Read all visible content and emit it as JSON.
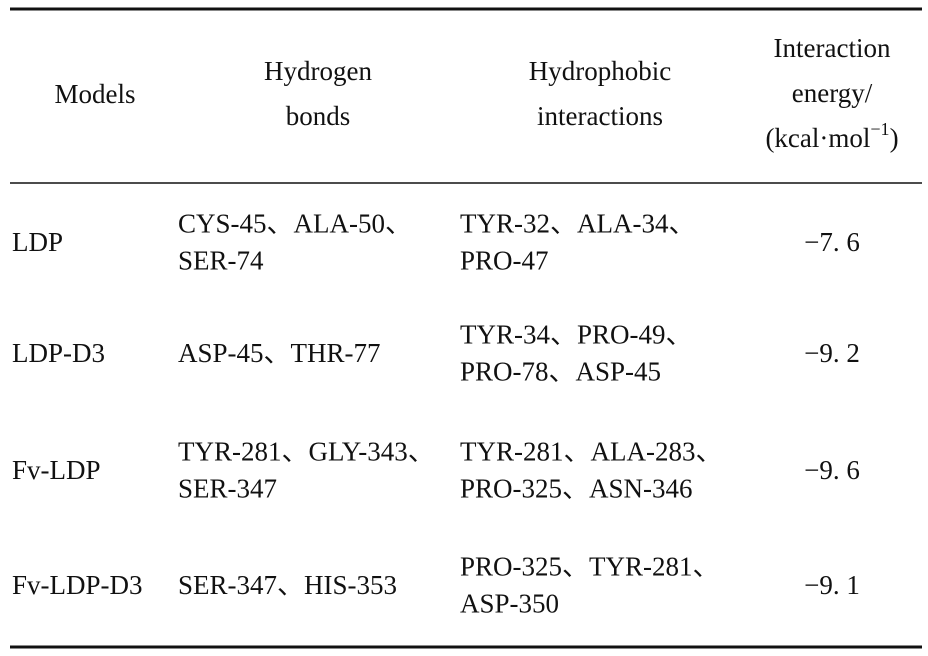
{
  "header": {
    "models": "Models",
    "hydrogen_bonds": [
      "Hydrogen",
      "bonds"
    ],
    "hydrophobic": [
      "Hydrophobic",
      "interactions"
    ],
    "energy": [
      "Interaction",
      "energy/"
    ],
    "energy_unit": {
      "before": "(kcal·mol",
      "sup": "−1",
      "after": ")"
    }
  },
  "table": {
    "rows": [
      {
        "model": "LDP",
        "hydrogen_bonds": [
          "CYS-45、ALA-50、",
          "SER-74"
        ],
        "hydrophobic": [
          "TYR-32、ALA-34、",
          "PRO-47"
        ],
        "energy": "−7. 6"
      },
      {
        "model": "LDP-D3",
        "hydrogen_bonds": [
          "ASP-45、THR-77"
        ],
        "hydrophobic": [
          "TYR-34、PRO-49、",
          "PRO-78、ASP-45"
        ],
        "energy": "−9. 2"
      },
      {
        "model": "Fv-LDP",
        "hydrogen_bonds": [
          "TYR-281、GLY-343、",
          "SER-347"
        ],
        "hydrophobic": [
          "TYR-281、ALA-283、",
          "PRO-325、ASN-346"
        ],
        "energy": "−9. 6"
      },
      {
        "model": "Fv-LDP-D3",
        "hydrogen_bonds": [
          "SER-347、HIS-353"
        ],
        "hydrophobic": [
          "PRO-325、TYR-281、",
          "ASP-350"
        ],
        "energy": "−9. 1"
      }
    ]
  }
}
